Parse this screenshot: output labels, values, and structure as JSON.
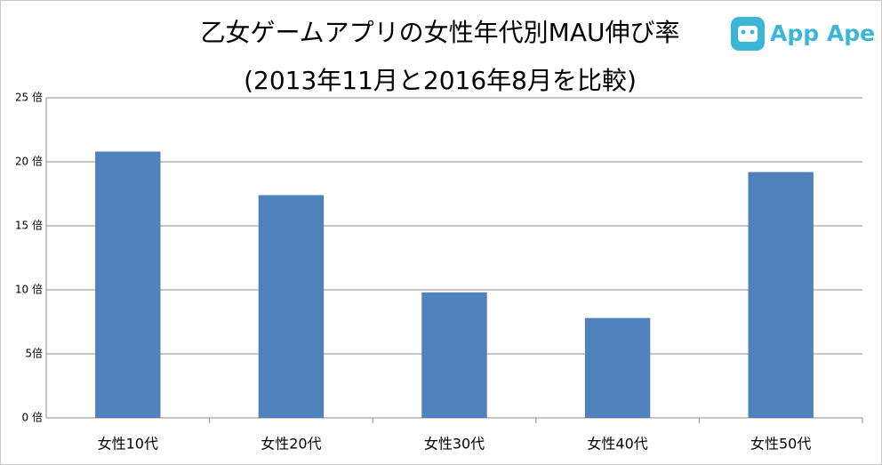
{
  "chart_data": {
    "type": "bar",
    "title": "乙女ゲームアプリの女性年代別MAU伸び率",
    "subtitle": "(2013年11月と2016年8月を比較)",
    "categories": [
      "女性10代",
      "女性20代",
      "女性30代",
      "女性40代",
      "女性50代"
    ],
    "values": [
      20.8,
      17.4,
      9.8,
      7.8,
      19.2
    ],
    "color": "#4f81bd",
    "ylim": [
      0,
      25
    ],
    "yticks": [
      {
        "value": 0,
        "label": "0 倍"
      },
      {
        "value": 5,
        "label": "5倍"
      },
      {
        "value": 10,
        "label": "10 倍"
      },
      {
        "value": 15,
        "label": "15 倍"
      },
      {
        "value": 20,
        "label": "20 倍"
      },
      {
        "value": 25,
        "label": "25 倍"
      }
    ],
    "grid": true
  },
  "brand": "App Ape"
}
